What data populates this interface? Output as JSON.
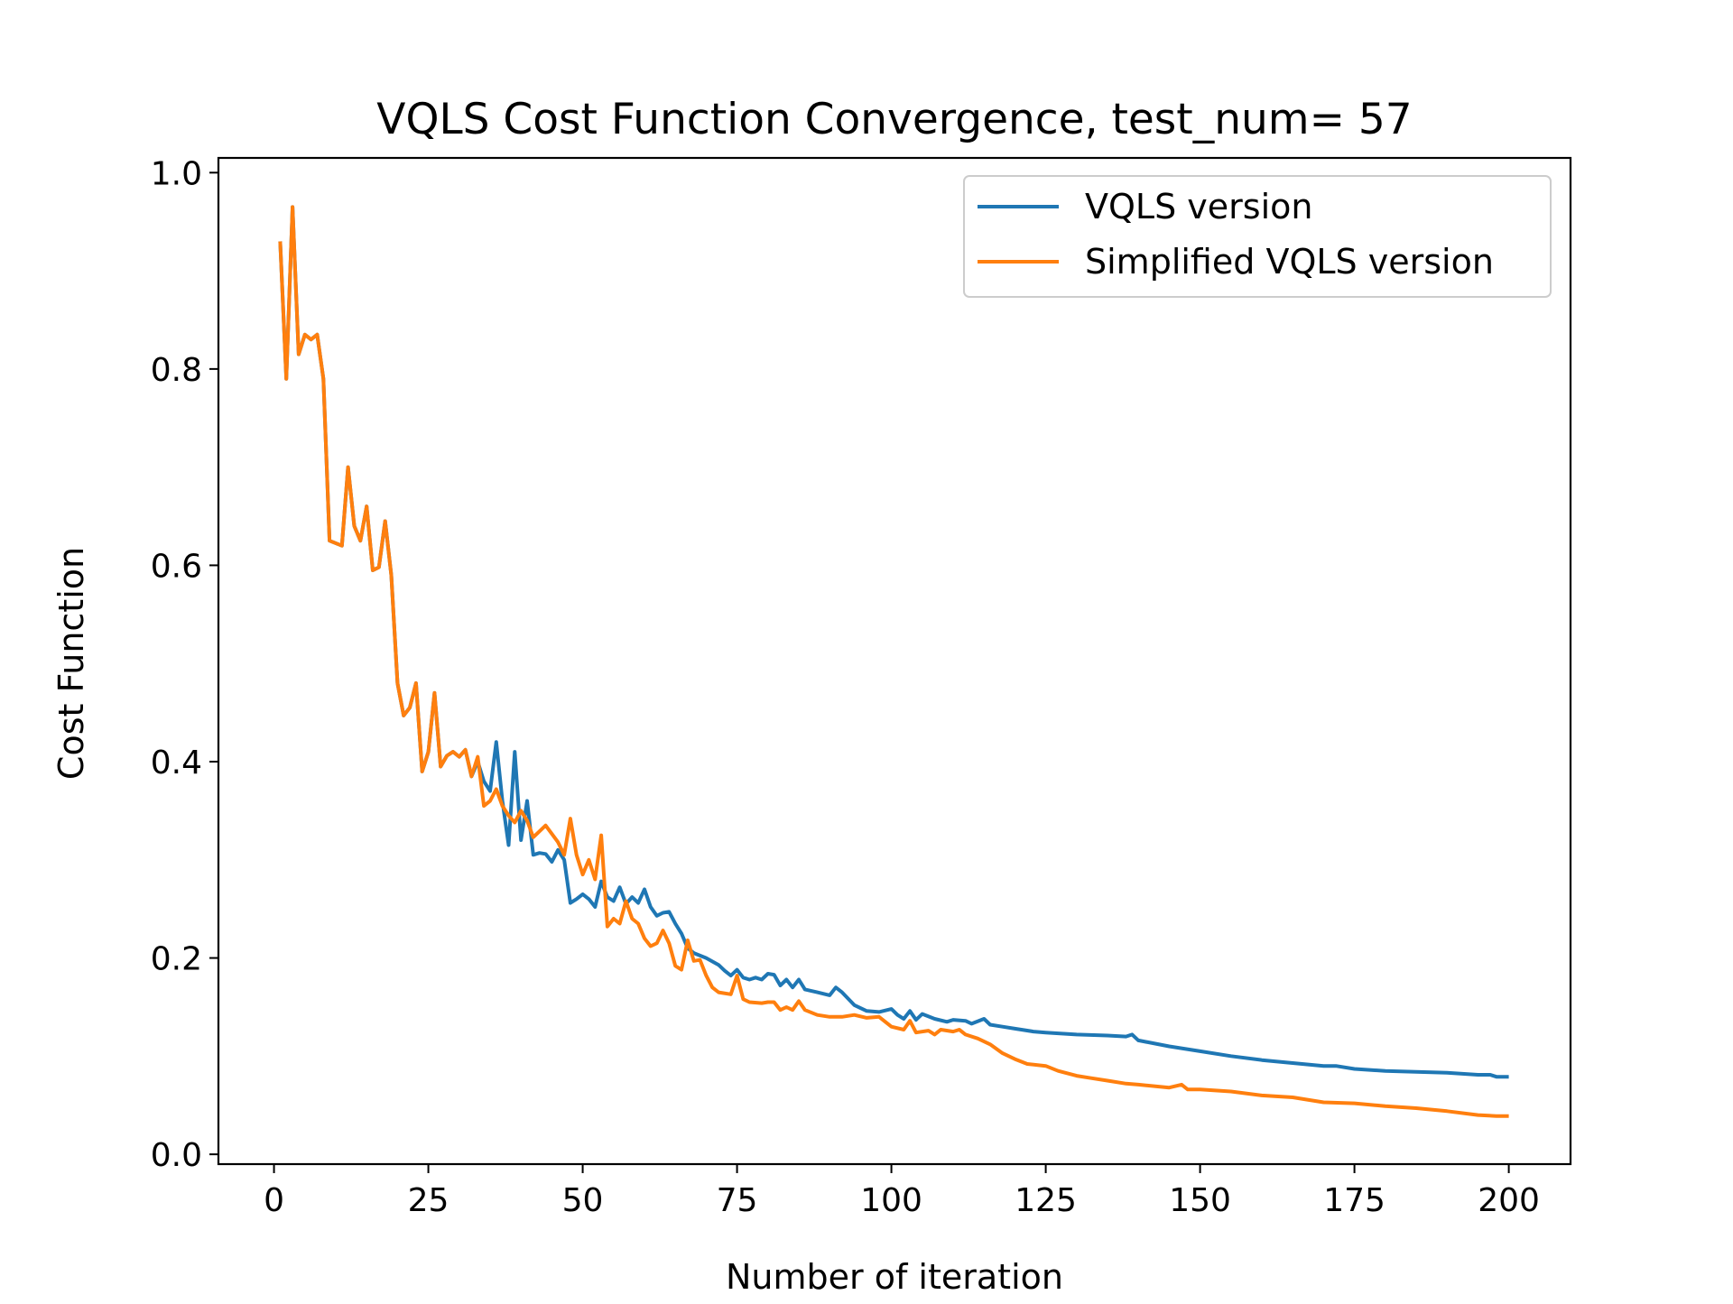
{
  "chart_data": {
    "type": "line",
    "title": "VQLS Cost Function Convergence, test_num= 57",
    "xlabel": "Number of iteration",
    "ylabel": "Cost Function",
    "xlim": [
      -9,
      210
    ],
    "ylim": [
      -0.01,
      1.015
    ],
    "xticks": [
      0,
      25,
      50,
      75,
      100,
      125,
      150,
      175,
      200
    ],
    "yticks": [
      0.0,
      0.2,
      0.4,
      0.6,
      0.8,
      1.0
    ],
    "xtick_labels": [
      "0",
      "25",
      "50",
      "75",
      "100",
      "125",
      "150",
      "175",
      "200"
    ],
    "ytick_labels": [
      "0.0",
      "0.2",
      "0.4",
      "0.6",
      "0.8",
      "1.0"
    ],
    "grid": false,
    "legend_position": "top-right",
    "series": [
      {
        "name": "VQLS version",
        "color": "#1f77b4",
        "keypoints": [
          [
            1,
            0.93
          ],
          [
            2,
            0.79
          ],
          [
            3,
            0.965
          ],
          [
            4,
            0.815
          ],
          [
            5,
            0.835
          ],
          [
            6,
            0.83
          ],
          [
            7,
            0.835
          ],
          [
            8,
            0.79
          ],
          [
            9,
            0.625
          ],
          [
            11,
            0.62
          ],
          [
            12,
            0.7
          ],
          [
            13,
            0.64
          ],
          [
            14,
            0.625
          ],
          [
            15,
            0.66
          ],
          [
            16,
            0.595
          ],
          [
            17,
            0.598
          ],
          [
            18,
            0.645
          ],
          [
            19,
            0.59
          ],
          [
            20,
            0.48
          ],
          [
            21,
            0.447
          ],
          [
            22,
            0.455
          ],
          [
            23,
            0.48
          ],
          [
            24,
            0.39
          ],
          [
            25,
            0.41
          ],
          [
            26,
            0.47
          ],
          [
            27,
            0.395
          ],
          [
            28,
            0.406
          ],
          [
            29,
            0.41
          ],
          [
            30,
            0.405
          ],
          [
            31,
            0.412
          ],
          [
            32,
            0.385
          ],
          [
            33,
            0.4
          ],
          [
            34,
            0.38
          ],
          [
            35,
            0.37
          ],
          [
            36,
            0.42
          ],
          [
            37,
            0.36
          ],
          [
            38,
            0.315
          ],
          [
            39,
            0.41
          ],
          [
            40,
            0.32
          ],
          [
            41,
            0.36
          ],
          [
            42,
            0.305
          ],
          [
            43,
            0.307
          ],
          [
            44,
            0.306
          ],
          [
            45,
            0.298
          ],
          [
            46,
            0.31
          ],
          [
            47,
            0.3
          ],
          [
            48,
            0.256
          ],
          [
            49,
            0.26
          ],
          [
            50,
            0.265
          ],
          [
            51,
            0.26
          ],
          [
            52,
            0.252
          ],
          [
            53,
            0.278
          ],
          [
            54,
            0.262
          ],
          [
            55,
            0.258
          ],
          [
            56,
            0.272
          ],
          [
            57,
            0.255
          ],
          [
            58,
            0.262
          ],
          [
            59,
            0.256
          ],
          [
            60,
            0.27
          ],
          [
            61,
            0.252
          ],
          [
            62,
            0.243
          ],
          [
            63,
            0.246
          ],
          [
            64,
            0.247
          ],
          [
            65,
            0.235
          ],
          [
            66,
            0.225
          ],
          [
            67,
            0.21
          ],
          [
            68,
            0.205
          ],
          [
            70,
            0.2
          ],
          [
            72,
            0.193
          ],
          [
            73,
            0.187
          ],
          [
            74,
            0.182
          ],
          [
            75,
            0.188
          ],
          [
            76,
            0.18
          ],
          [
            77,
            0.178
          ],
          [
            78,
            0.18
          ],
          [
            79,
            0.178
          ],
          [
            80,
            0.184
          ],
          [
            81,
            0.183
          ],
          [
            82,
            0.172
          ],
          [
            83,
            0.178
          ],
          [
            84,
            0.17
          ],
          [
            85,
            0.178
          ],
          [
            86,
            0.168
          ],
          [
            88,
            0.165
          ],
          [
            90,
            0.162
          ],
          [
            91,
            0.17
          ],
          [
            92,
            0.165
          ],
          [
            94,
            0.152
          ],
          [
            96,
            0.146
          ],
          [
            98,
            0.145
          ],
          [
            100,
            0.148
          ],
          [
            101,
            0.142
          ],
          [
            102,
            0.138
          ],
          [
            103,
            0.146
          ],
          [
            104,
            0.137
          ],
          [
            105,
            0.143
          ],
          [
            107,
            0.138
          ],
          [
            109,
            0.135
          ],
          [
            110,
            0.137
          ],
          [
            112,
            0.136
          ],
          [
            113,
            0.133
          ],
          [
            115,
            0.138
          ],
          [
            116,
            0.132
          ],
          [
            118,
            0.13
          ],
          [
            120,
            0.128
          ],
          [
            123,
            0.125
          ],
          [
            125,
            0.124
          ],
          [
            130,
            0.122
          ],
          [
            135,
            0.121
          ],
          [
            138,
            0.12
          ],
          [
            139,
            0.122
          ],
          [
            140,
            0.116
          ],
          [
            145,
            0.11
          ],
          [
            150,
            0.105
          ],
          [
            155,
            0.1
          ],
          [
            160,
            0.096
          ],
          [
            165,
            0.093
          ],
          [
            170,
            0.09
          ],
          [
            172,
            0.09
          ],
          [
            175,
            0.087
          ],
          [
            180,
            0.085
          ],
          [
            185,
            0.084
          ],
          [
            190,
            0.083
          ],
          [
            195,
            0.081
          ],
          [
            197,
            0.081
          ],
          [
            198,
            0.079
          ],
          [
            200,
            0.079
          ]
        ]
      },
      {
        "name": "Simplified VQLS version",
        "color": "#ff7f0e",
        "keypoints": [
          [
            1,
            0.93
          ],
          [
            2,
            0.79
          ],
          [
            3,
            0.965
          ],
          [
            4,
            0.815
          ],
          [
            5,
            0.835
          ],
          [
            6,
            0.83
          ],
          [
            7,
            0.835
          ],
          [
            8,
            0.79
          ],
          [
            9,
            0.625
          ],
          [
            11,
            0.62
          ],
          [
            12,
            0.7
          ],
          [
            13,
            0.64
          ],
          [
            14,
            0.625
          ],
          [
            15,
            0.66
          ],
          [
            16,
            0.595
          ],
          [
            17,
            0.598
          ],
          [
            18,
            0.645
          ],
          [
            19,
            0.59
          ],
          [
            20,
            0.48
          ],
          [
            21,
            0.447
          ],
          [
            22,
            0.455
          ],
          [
            23,
            0.48
          ],
          [
            24,
            0.39
          ],
          [
            25,
            0.41
          ],
          [
            26,
            0.47
          ],
          [
            27,
            0.395
          ],
          [
            28,
            0.406
          ],
          [
            29,
            0.41
          ],
          [
            30,
            0.405
          ],
          [
            31,
            0.412
          ],
          [
            32,
            0.385
          ],
          [
            33,
            0.405
          ],
          [
            34,
            0.355
          ],
          [
            35,
            0.36
          ],
          [
            36,
            0.372
          ],
          [
            37,
            0.355
          ],
          [
            38,
            0.345
          ],
          [
            39,
            0.338
          ],
          [
            40,
            0.35
          ],
          [
            41,
            0.34
          ],
          [
            42,
            0.323
          ],
          [
            44,
            0.335
          ],
          [
            46,
            0.318
          ],
          [
            47,
            0.305
          ],
          [
            48,
            0.342
          ],
          [
            49,
            0.305
          ],
          [
            50,
            0.285
          ],
          [
            51,
            0.3
          ],
          [
            52,
            0.28
          ],
          [
            53,
            0.325
          ],
          [
            54,
            0.232
          ],
          [
            55,
            0.24
          ],
          [
            56,
            0.235
          ],
          [
            57,
            0.258
          ],
          [
            58,
            0.24
          ],
          [
            59,
            0.235
          ],
          [
            60,
            0.22
          ],
          [
            61,
            0.212
          ],
          [
            62,
            0.215
          ],
          [
            63,
            0.228
          ],
          [
            64,
            0.215
          ],
          [
            65,
            0.192
          ],
          [
            66,
            0.188
          ],
          [
            67,
            0.218
          ],
          [
            68,
            0.197
          ],
          [
            69,
            0.198
          ],
          [
            70,
            0.182
          ],
          [
            71,
            0.17
          ],
          [
            72,
            0.165
          ],
          [
            74,
            0.163
          ],
          [
            75,
            0.182
          ],
          [
            76,
            0.158
          ],
          [
            77,
            0.155
          ],
          [
            79,
            0.154
          ],
          [
            80,
            0.155
          ],
          [
            81,
            0.155
          ],
          [
            82,
            0.147
          ],
          [
            83,
            0.15
          ],
          [
            84,
            0.147
          ],
          [
            85,
            0.156
          ],
          [
            86,
            0.147
          ],
          [
            88,
            0.142
          ],
          [
            90,
            0.14
          ],
          [
            92,
            0.14
          ],
          [
            94,
            0.142
          ],
          [
            96,
            0.139
          ],
          [
            98,
            0.14
          ],
          [
            100,
            0.13
          ],
          [
            102,
            0.127
          ],
          [
            103,
            0.136
          ],
          [
            104,
            0.124
          ],
          [
            106,
            0.126
          ],
          [
            107,
            0.122
          ],
          [
            108,
            0.127
          ],
          [
            110,
            0.125
          ],
          [
            111,
            0.127
          ],
          [
            112,
            0.122
          ],
          [
            114,
            0.118
          ],
          [
            116,
            0.112
          ],
          [
            118,
            0.103
          ],
          [
            120,
            0.097
          ],
          [
            122,
            0.092
          ],
          [
            125,
            0.09
          ],
          [
            127,
            0.085
          ],
          [
            130,
            0.08
          ],
          [
            132,
            0.078
          ],
          [
            135,
            0.075
          ],
          [
            138,
            0.072
          ],
          [
            140,
            0.071
          ],
          [
            145,
            0.068
          ],
          [
            147,
            0.071
          ],
          [
            148,
            0.066
          ],
          [
            150,
            0.066
          ],
          [
            155,
            0.064
          ],
          [
            160,
            0.06
          ],
          [
            165,
            0.058
          ],
          [
            170,
            0.053
          ],
          [
            175,
            0.052
          ],
          [
            180,
            0.049
          ],
          [
            185,
            0.047
          ],
          [
            190,
            0.044
          ],
          [
            195,
            0.04
          ],
          [
            198,
            0.039
          ],
          [
            200,
            0.039
          ]
        ]
      }
    ]
  }
}
